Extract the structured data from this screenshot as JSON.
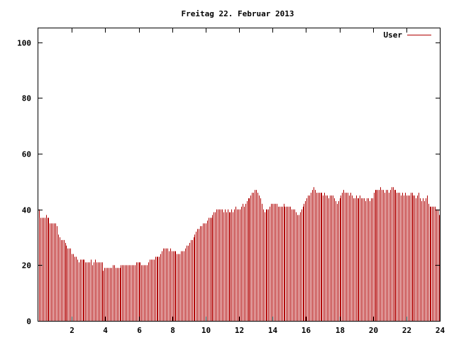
{
  "chart_data": {
    "type": "bar",
    "title": "Freitag 22. Februar 2013",
    "xlabel": "",
    "ylabel": "",
    "xlim": [
      0,
      24
    ],
    "ylim": [
      0,
      105
    ],
    "xticks": [
      "2",
      "4",
      "6",
      "8",
      "10",
      "12",
      "14",
      "16",
      "18",
      "20",
      "22",
      "24"
    ],
    "yticks": [
      "0",
      "20",
      "40",
      "60",
      "80",
      "100"
    ],
    "grid": false,
    "legend_position": "top-right",
    "bar_color": "#b00000",
    "series": [
      {
        "name": "User",
        "values": [
          40,
          37,
          37,
          37,
          37,
          38,
          37,
          37,
          35,
          35,
          35,
          35,
          35,
          34,
          31,
          30,
          29,
          29,
          29,
          28,
          27,
          26,
          26,
          26,
          24,
          24,
          23,
          23,
          22,
          21,
          22,
          22,
          22,
          22,
          21,
          21,
          21,
          21,
          22,
          20,
          21,
          22,
          21,
          21,
          21,
          21,
          21,
          18,
          19,
          19,
          19,
          19,
          19,
          19,
          20,
          20,
          19,
          19,
          19,
          19,
          20,
          20,
          20,
          20,
          20,
          20,
          20,
          20,
          20,
          20,
          20,
          21,
          21,
          21,
          21,
          20,
          20,
          20,
          20,
          20,
          21,
          22,
          22,
          22,
          22,
          23,
          23,
          23,
          23,
          24,
          25,
          26,
          26,
          26,
          26,
          25,
          26,
          25,
          25,
          25,
          25,
          24,
          24,
          24,
          25,
          25,
          25,
          26,
          27,
          27,
          28,
          29,
          29,
          30,
          31,
          32,
          33,
          33,
          34,
          34,
          35,
          35,
          35,
          36,
          37,
          37,
          37,
          38,
          39,
          39,
          40,
          40,
          40,
          40,
          40,
          39,
          40,
          39,
          40,
          39,
          39,
          40,
          39,
          40,
          41,
          40,
          40,
          40,
          41,
          42,
          41,
          42,
          43,
          44,
          44,
          45,
          46,
          46,
          47,
          47,
          46,
          45,
          44,
          42,
          40,
          39,
          40,
          40,
          40,
          41,
          42,
          42,
          42,
          42,
          42,
          41,
          41,
          41,
          41,
          42,
          41,
          41,
          41,
          41,
          41,
          40,
          40,
          40,
          39,
          38,
          38,
          39,
          40,
          41,
          42,
          43,
          44,
          45,
          45,
          46,
          47,
          48,
          47,
          46,
          46,
          46,
          46,
          46,
          45,
          46,
          45,
          45,
          44,
          45,
          45,
          45,
          44,
          43,
          42,
          43,
          44,
          45,
          46,
          47,
          46,
          46,
          46,
          45,
          46,
          45,
          44,
          44,
          45,
          44,
          44,
          45,
          44,
          44,
          44,
          43,
          44,
          44,
          43,
          44,
          44,
          46,
          47,
          47,
          47,
          47,
          48,
          47,
          47,
          46,
          47,
          47,
          46,
          47,
          48,
          48,
          47,
          47,
          46,
          46,
          46,
          45,
          46,
          45,
          46,
          45,
          45,
          45,
          46,
          46,
          45,
          45,
          44,
          45,
          46,
          44,
          43,
          44,
          43,
          44,
          45,
          42,
          41,
          41,
          41,
          41,
          41,
          40,
          40,
          38
        ]
      }
    ]
  }
}
